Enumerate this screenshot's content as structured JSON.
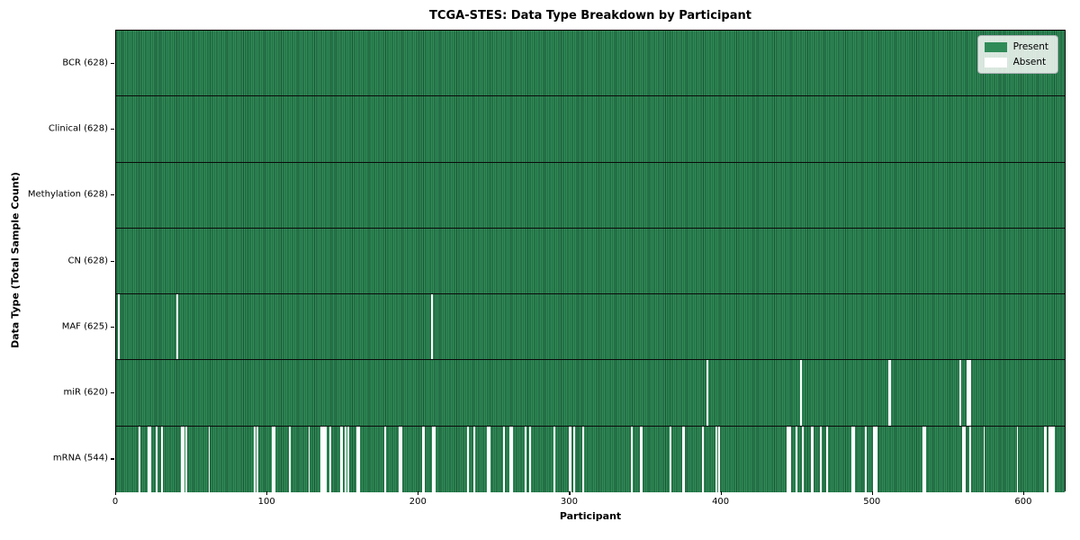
{
  "title": "TCGA-STES: Data Type Breakdown by Participant",
  "colors": {
    "present": "#2e8b57",
    "present_edge": "#1c5434",
    "absent": "#ffffff",
    "axis": "#000000"
  },
  "legend": {
    "present_label": "Present",
    "absent_label": "Absent"
  },
  "chart_data": {
    "type": "heatmap",
    "title": "TCGA-STES: Data Type Breakdown by Participant",
    "xlabel": "Participant",
    "ylabel": "Data Type (Total Sample Count)",
    "legend": [
      "Present",
      "Absent"
    ],
    "legend_position": "upper right",
    "grid": false,
    "x_range": [
      0,
      628
    ],
    "x_ticks": [
      0,
      100,
      200,
      300,
      400,
      500,
      600
    ],
    "total_participants": 628,
    "rows": [
      {
        "data_type": "BCR",
        "label": "BCR (628)",
        "present_count": 628,
        "absent_count": 0,
        "absent_participants": []
      },
      {
        "data_type": "Clinical",
        "label": "Clinical (628)",
        "present_count": 628,
        "absent_count": 0,
        "absent_participants": []
      },
      {
        "data_type": "Methylation",
        "label": "Methylation (628)",
        "present_count": 628,
        "absent_count": 0,
        "absent_participants": []
      },
      {
        "data_type": "CN",
        "label": "CN (628)",
        "present_count": 628,
        "absent_count": 0,
        "absent_participants": []
      },
      {
        "data_type": "MAF",
        "label": "MAF (625)",
        "present_count": 625,
        "absent_count": 3,
        "absent_participants": [
          1,
          40,
          208
        ]
      },
      {
        "data_type": "miR",
        "label": "miR (620)",
        "present_count": 620,
        "absent_count": 8,
        "absent_participants": [
          390,
          452,
          510,
          511,
          557,
          562,
          563,
          564
        ]
      },
      {
        "data_type": "mRNA",
        "label": "mRNA (544)",
        "present_count": 544,
        "absent_count": 84,
        "absent_participants": [
          15,
          21,
          22,
          26,
          30,
          43,
          44,
          46,
          61,
          91,
          93,
          103,
          104,
          114,
          127,
          135,
          136,
          137,
          138,
          141,
          148,
          149,
          151,
          153,
          159,
          160,
          177,
          187,
          188,
          202,
          203,
          209,
          210,
          232,
          236,
          245,
          246,
          256,
          260,
          261,
          270,
          273,
          289,
          299,
          300,
          302,
          308,
          340,
          346,
          347,
          366,
          374,
          375,
          387,
          396,
          398,
          443,
          444,
          445,
          449,
          453,
          459,
          460,
          465,
          469,
          486,
          487,
          495,
          500,
          501,
          502,
          533,
          534,
          559,
          560,
          564,
          573,
          595,
          613,
          614,
          616,
          617,
          618,
          619
        ]
      }
    ]
  }
}
